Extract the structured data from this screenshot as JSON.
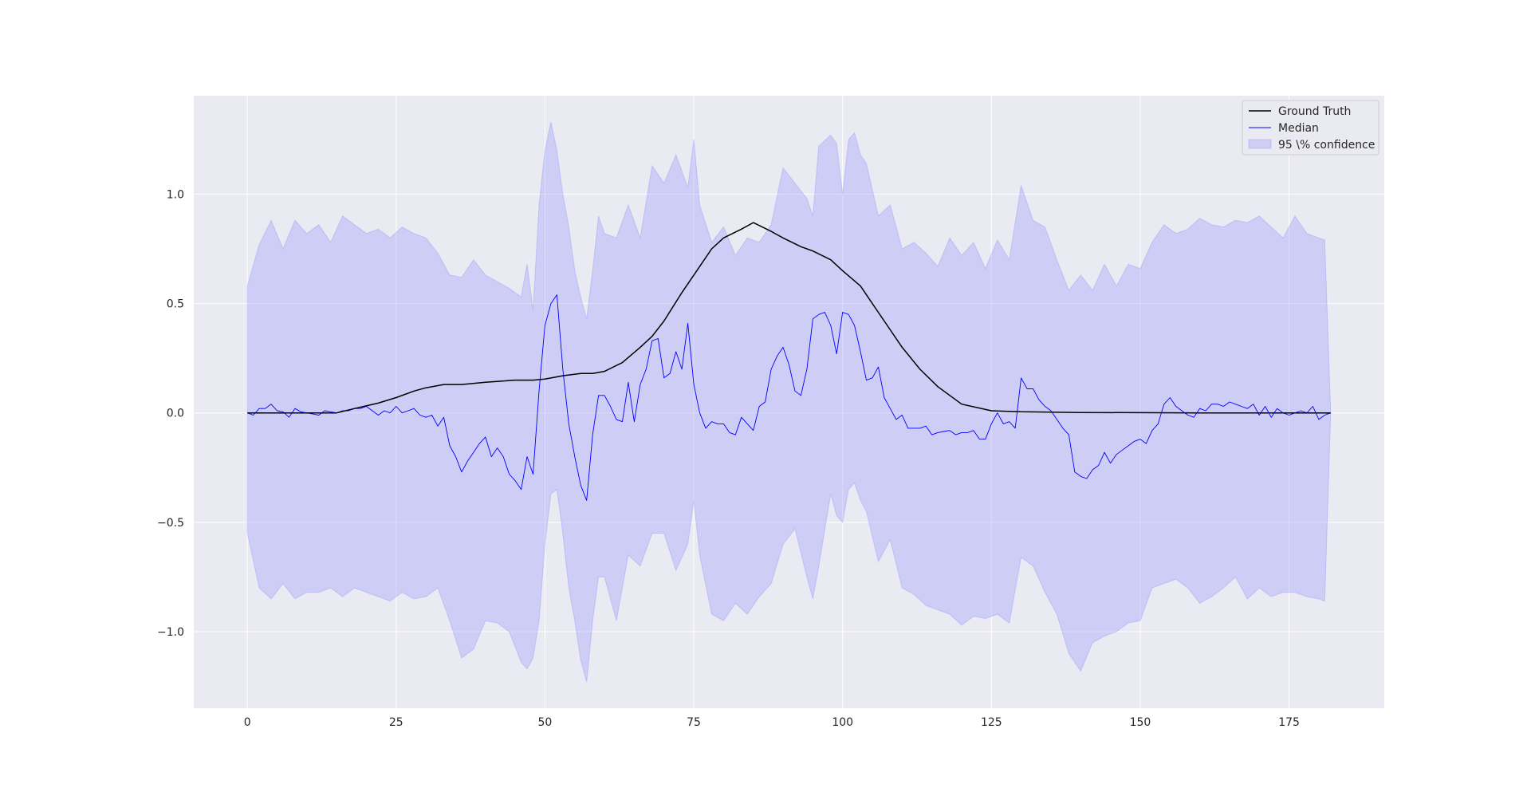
{
  "chart_data": {
    "type": "line",
    "title": "",
    "xlabel": "",
    "ylabel": "",
    "xlim": [
      -9,
      191
    ],
    "ylim": [
      -1.35,
      1.45
    ],
    "x_ticks": [
      0,
      25,
      50,
      75,
      100,
      125,
      150,
      175
    ],
    "y_ticks": [
      -1.0,
      -0.5,
      0.0,
      0.5,
      1.0
    ],
    "x_tick_labels": [
      "0",
      "25",
      "50",
      "75",
      "100",
      "125",
      "150",
      "175"
    ],
    "y_tick_labels": [
      "−1.0",
      "−0.5",
      "0.0",
      "0.5",
      "1.0"
    ],
    "grid": true,
    "legend_position": "top-right",
    "colors": {
      "background": "#eaeaf2",
      "grid": "#ffffff",
      "ground_truth": "#000000",
      "median": "#0000ff",
      "band": "#8080ff"
    },
    "x": [
      0,
      5,
      10,
      15,
      18,
      22,
      25,
      28,
      30,
      33,
      36,
      40,
      45,
      48,
      50,
      53,
      56,
      58,
      60,
      63,
      66,
      68,
      70,
      73,
      75,
      78,
      80,
      83,
      85,
      88,
      90,
      93,
      95,
      98,
      100,
      103,
      105,
      108,
      110,
      113,
      116,
      120,
      125,
      130,
      140,
      150,
      160,
      170,
      182
    ],
    "series": [
      {
        "name": "Ground Truth",
        "style": "line",
        "values": [
          0,
          0,
          0,
          0,
          0.02,
          0.045,
          0.07,
          0.1,
          0.115,
          0.13,
          0.13,
          0.14,
          0.15,
          0.15,
          0.155,
          0.17,
          0.18,
          0.18,
          0.19,
          0.23,
          0.3,
          0.35,
          0.42,
          0.55,
          0.63,
          0.75,
          0.8,
          0.84,
          0.87,
          0.83,
          0.8,
          0.76,
          0.74,
          0.7,
          0.65,
          0.58,
          0.5,
          0.38,
          0.3,
          0.2,
          0.12,
          0.04,
          0.01,
          0.005,
          0.002,
          0.001,
          0,
          0,
          0
        ]
      },
      {
        "name": "Median",
        "style": "line",
        "x": [
          0,
          1,
          2,
          3,
          4,
          5,
          6,
          7,
          8,
          9,
          10,
          11,
          12,
          13,
          14,
          15,
          16,
          17,
          18,
          19,
          20,
          21,
          22,
          23,
          24,
          25,
          26,
          27,
          28,
          29,
          30,
          31,
          32,
          33,
          34,
          35,
          36,
          37,
          38,
          39,
          40,
          41,
          42,
          43,
          44,
          45,
          46,
          47,
          48,
          49,
          50,
          51,
          52,
          53,
          54,
          55,
          56,
          57,
          58,
          59,
          60,
          61,
          62,
          63,
          64,
          65,
          66,
          67,
          68,
          69,
          70,
          71,
          72,
          73,
          74,
          75,
          76,
          77,
          78,
          79,
          80,
          81,
          82,
          83,
          84,
          85,
          86,
          87,
          88,
          89,
          90,
          91,
          92,
          93,
          94,
          95,
          96,
          97,
          98,
          99,
          100,
          101,
          102,
          103,
          104,
          105,
          106,
          107,
          108,
          109,
          110,
          111,
          112,
          113,
          114,
          115,
          116,
          117,
          118,
          119,
          120,
          121,
          122,
          123,
          124,
          125,
          126,
          127,
          128,
          129,
          130,
          131,
          132,
          133,
          134,
          135,
          136,
          137,
          138,
          139,
          140,
          141,
          142,
          143,
          144,
          145,
          146,
          147,
          148,
          149,
          150,
          151,
          152,
          153,
          154,
          155,
          156,
          157,
          158,
          159,
          160,
          161,
          162,
          163,
          164,
          165,
          166,
          167,
          168,
          169,
          170,
          171,
          172,
          173,
          174,
          175,
          176,
          177,
          178,
          179,
          180,
          181,
          182
        ],
        "values": [
          0,
          -0.01,
          0.02,
          0.02,
          0.04,
          0.01,
          0.005,
          -0.02,
          0.02,
          0.005,
          0.0,
          -0.005,
          -0.01,
          0.01,
          0.005,
          0.0,
          0.01,
          0.01,
          0.02,
          0.02,
          0.03,
          0.01,
          -0.01,
          0.01,
          0.0,
          0.03,
          0.0,
          0.01,
          0.02,
          -0.01,
          -0.02,
          -0.01,
          -0.06,
          -0.02,
          -0.15,
          -0.2,
          -0.27,
          -0.22,
          -0.18,
          -0.14,
          -0.11,
          -0.2,
          -0.16,
          -0.2,
          -0.28,
          -0.31,
          -0.35,
          -0.2,
          -0.28,
          0.1,
          0.4,
          0.5,
          0.54,
          0.2,
          -0.05,
          -0.2,
          -0.33,
          -0.4,
          -0.1,
          0.08,
          0.08,
          0.03,
          -0.03,
          -0.04,
          0.14,
          -0.04,
          0.13,
          0.2,
          0.33,
          0.34,
          0.16,
          0.18,
          0.28,
          0.2,
          0.41,
          0.13,
          0.0,
          -0.07,
          -0.04,
          -0.05,
          -0.05,
          -0.09,
          -0.1,
          -0.02,
          -0.05,
          -0.08,
          0.03,
          0.05,
          0.2,
          0.26,
          0.3,
          0.22,
          0.1,
          0.08,
          0.2,
          0.43,
          0.45,
          0.46,
          0.4,
          0.27,
          0.46,
          0.45,
          0.4,
          0.28,
          0.15,
          0.16,
          0.21,
          0.07,
          0.02,
          -0.03,
          -0.01,
          -0.07,
          -0.07,
          -0.07,
          -0.06,
          -0.1,
          -0.09,
          -0.085,
          -0.08,
          -0.1,
          -0.09,
          -0.09,
          -0.08,
          -0.12,
          -0.12,
          -0.05,
          0.0,
          -0.05,
          -0.04,
          -0.07,
          0.16,
          0.11,
          0.11,
          0.06,
          0.03,
          0.01,
          -0.03,
          -0.07,
          -0.1,
          -0.27,
          -0.29,
          -0.3,
          -0.26,
          -0.24,
          -0.18,
          -0.23,
          -0.19,
          -0.17,
          -0.15,
          -0.13,
          -0.12,
          -0.14,
          -0.08,
          -0.05,
          0.04,
          0.07,
          0.03,
          0.01,
          -0.01,
          -0.02,
          0.02,
          0.01,
          0.04,
          0.04,
          0.03,
          0.05,
          0.04,
          0.03,
          0.02,
          0.04,
          -0.01,
          0.03,
          -0.02,
          0.02,
          0.0,
          -0.01,
          0.0,
          0.01,
          0.0,
          0.03,
          -0.03,
          -0.01,
          0.0
        ]
      },
      {
        "name": "95 \\% confidence",
        "style": "band",
        "x": [
          0,
          2,
          4,
          6,
          8,
          10,
          12,
          14,
          16,
          18,
          20,
          22,
          24,
          26,
          28,
          30,
          32,
          34,
          36,
          38,
          40,
          42,
          44,
          46,
          47,
          48,
          49,
          50,
          51,
          52,
          53,
          54,
          55,
          56,
          57,
          58,
          59,
          60,
          62,
          64,
          66,
          68,
          70,
          72,
          74,
          75,
          76,
          78,
          80,
          82,
          84,
          86,
          88,
          90,
          92,
          94,
          95,
          96,
          98,
          99,
          100,
          101,
          102,
          103,
          104,
          106,
          108,
          110,
          112,
          114,
          116,
          118,
          120,
          122,
          124,
          126,
          128,
          130,
          132,
          134,
          136,
          138,
          140,
          142,
          144,
          146,
          148,
          150,
          152,
          154,
          156,
          158,
          160,
          162,
          164,
          166,
          168,
          170,
          172,
          174,
          176,
          178,
          180,
          181,
          182
        ],
        "upper": [
          0.58,
          0.77,
          0.88,
          0.75,
          0.88,
          0.82,
          0.86,
          0.78,
          0.9,
          0.86,
          0.82,
          0.84,
          0.8,
          0.85,
          0.82,
          0.8,
          0.73,
          0.63,
          0.62,
          0.7,
          0.63,
          0.6,
          0.57,
          0.53,
          0.68,
          0.47,
          0.95,
          1.2,
          1.33,
          1.2,
          1.0,
          0.85,
          0.65,
          0.53,
          0.43,
          0.65,
          0.9,
          0.82,
          0.8,
          0.95,
          0.8,
          1.13,
          1.05,
          1.18,
          1.03,
          1.25,
          0.95,
          0.78,
          0.85,
          0.72,
          0.8,
          0.78,
          0.86,
          1.12,
          1.05,
          0.98,
          0.9,
          1.22,
          1.27,
          1.23,
          1.0,
          1.25,
          1.28,
          1.18,
          1.14,
          0.9,
          0.95,
          0.75,
          0.78,
          0.73,
          0.67,
          0.8,
          0.72,
          0.78,
          0.66,
          0.79,
          0.7,
          1.04,
          0.88,
          0.85,
          0.7,
          0.56,
          0.63,
          0.56,
          0.68,
          0.58,
          0.68,
          0.66,
          0.78,
          0.86,
          0.82,
          0.84,
          0.89,
          0.86,
          0.85,
          0.88,
          0.87,
          0.9,
          0.85,
          0.8,
          0.9,
          0.82,
          0.8,
          0.79,
          0.0
        ],
        "lower": [
          -0.55,
          -0.8,
          -0.85,
          -0.78,
          -0.85,
          -0.82,
          -0.82,
          -0.8,
          -0.84,
          -0.8,
          -0.82,
          -0.84,
          -0.86,
          -0.82,
          -0.85,
          -0.84,
          -0.8,
          -0.95,
          -1.12,
          -1.08,
          -0.95,
          -0.96,
          -1.0,
          -1.14,
          -1.17,
          -1.12,
          -0.95,
          -0.6,
          -0.37,
          -0.35,
          -0.55,
          -0.8,
          -0.95,
          -1.13,
          -1.23,
          -0.95,
          -0.75,
          -0.75,
          -0.95,
          -0.65,
          -0.7,
          -0.55,
          -0.55,
          -0.72,
          -0.6,
          -0.4,
          -0.65,
          -0.92,
          -0.95,
          -0.87,
          -0.92,
          -0.84,
          -0.78,
          -0.6,
          -0.53,
          -0.75,
          -0.85,
          -0.7,
          -0.37,
          -0.47,
          -0.5,
          -0.35,
          -0.32,
          -0.4,
          -0.45,
          -0.68,
          -0.58,
          -0.8,
          -0.83,
          -0.88,
          -0.9,
          -0.92,
          -0.97,
          -0.93,
          -0.94,
          -0.92,
          -0.96,
          -0.66,
          -0.7,
          -0.82,
          -0.92,
          -1.1,
          -1.18,
          -1.05,
          -1.02,
          -1.0,
          -0.96,
          -0.95,
          -0.8,
          -0.78,
          -0.76,
          -0.8,
          -0.87,
          -0.84,
          -0.8,
          -0.75,
          -0.85,
          -0.8,
          -0.84,
          -0.82,
          -0.82,
          -0.84,
          -0.85,
          -0.86,
          0.0
        ]
      }
    ]
  }
}
